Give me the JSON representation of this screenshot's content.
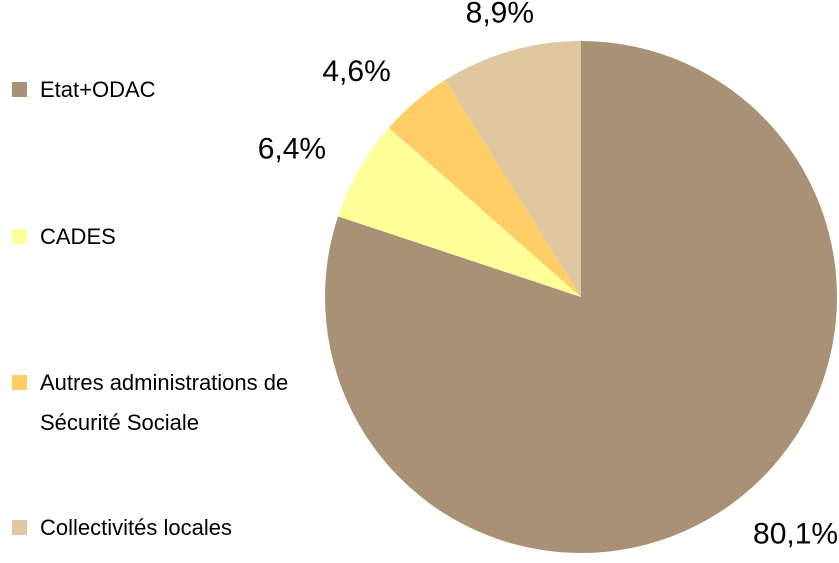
{
  "chart_data": {
    "type": "pie",
    "categories": [
      "Etat+ODAC",
      "CADES",
      "Autres administrations de Sécurité Sociale",
      "Collectivités locales"
    ],
    "values": [
      80.1,
      6.4,
      4.6,
      8.9
    ],
    "value_labels": [
      "80,1%",
      "6,4%",
      "4,6%",
      "8,9%"
    ],
    "colors": [
      "#a89174",
      "#ffff99",
      "#ffcc66",
      "#dfc89f"
    ],
    "legend": "left"
  }
}
